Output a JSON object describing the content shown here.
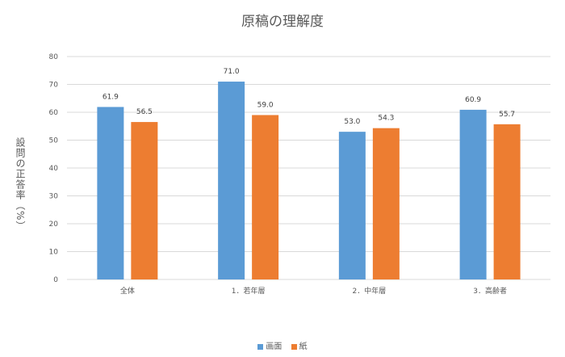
{
  "chart_data": {
    "type": "bar",
    "title": "原稿の理解度",
    "ylabel": "設問の正答率（%）",
    "xlabel": "",
    "ylim": [
      0,
      80
    ],
    "yticks": [
      0,
      10,
      20,
      30,
      40,
      50,
      60,
      70,
      80
    ],
    "grid": true,
    "legend_position": "bottom",
    "categories": [
      "全体",
      "1．若年層",
      "2．中年層",
      "3．高齢者"
    ],
    "series": [
      {
        "name": "画面",
        "color": "#5b9bd5",
        "values": [
          61.9,
          71.0,
          53.0,
          60.9
        ]
      },
      {
        "name": "紙",
        "color": "#ed7d31",
        "values": [
          56.5,
          59.0,
          54.3,
          55.7
        ]
      }
    ]
  }
}
